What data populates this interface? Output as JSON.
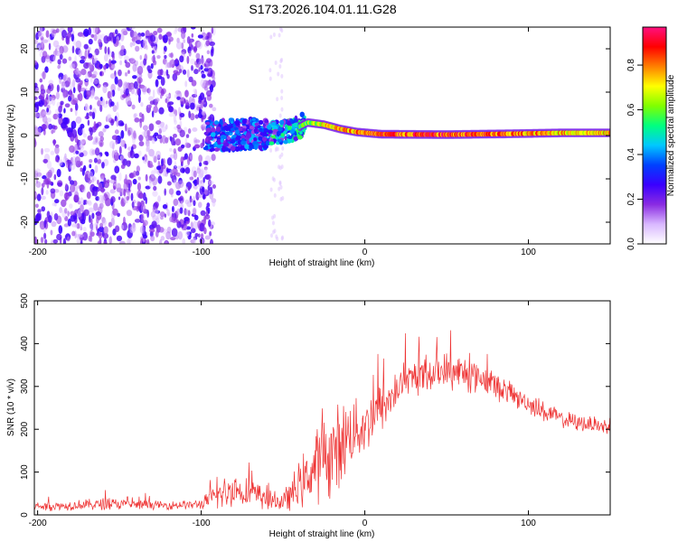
{
  "title": "S173.2026.104.01.11.G28",
  "chart_data": [
    {
      "type": "heatmap",
      "xlabel": "Height of straight line (km)",
      "ylabel": "Frequency (Hz)",
      "xlim": [
        -202,
        150
      ],
      "ylim": [
        -25,
        25
      ],
      "x_ticks": [
        -200,
        -100,
        0,
        100
      ],
      "y_ticks": [
        -20,
        -10,
        0,
        10,
        20
      ],
      "colorbar": {
        "label": "Normalized spectral amplitude",
        "range": [
          0,
          0.97
        ],
        "ticks": [
          "0.0",
          "0.2",
          "0.4",
          "0.6",
          "0.8"
        ],
        "tick_values": [
          0.0,
          0.2,
          0.4,
          0.6,
          0.8
        ]
      },
      "colormap": [
        "#ffffff",
        "#d9b8ff",
        "#8a2be2",
        "#3a00ff",
        "#0040ff",
        "#00c8ff",
        "#00ff80",
        "#80ff00",
        "#ffff00",
        "#ff8000",
        "#ff0000",
        "#ff1080"
      ],
      "ridge": [
        {
          "x": -95,
          "f": 0.0,
          "amp": 0.35
        },
        {
          "x": -80,
          "f": 0.2,
          "amp": 0.45
        },
        {
          "x": -60,
          "f": 0.5,
          "amp": 0.5
        },
        {
          "x": -45,
          "f": 1.0,
          "amp": 0.55
        },
        {
          "x": -35,
          "f": 3.0,
          "amp": 0.7
        },
        {
          "x": -25,
          "f": 2.5,
          "amp": 0.8
        },
        {
          "x": -15,
          "f": 1.5,
          "amp": 0.85
        },
        {
          "x": -5,
          "f": 0.8,
          "amp": 0.9
        },
        {
          "x": 10,
          "f": 0.3,
          "amp": 0.95
        },
        {
          "x": 50,
          "f": 0.2,
          "amp": 0.97
        },
        {
          "x": 90,
          "f": 0.4,
          "amp": 0.9
        },
        {
          "x": 120,
          "f": 0.6,
          "amp": 0.85
        },
        {
          "x": 150,
          "f": 0.6,
          "amp": 0.82
        }
      ]
    },
    {
      "type": "line",
      "xlabel": "Height of straight line (km)",
      "ylabel": "SNR (10 * v/v)",
      "xlim": [
        -202,
        150
      ],
      "ylim": [
        0,
        500
      ],
      "x_ticks": [
        -200,
        -100,
        0,
        100
      ],
      "y_ticks": [
        0,
        100,
        200,
        300,
        400,
        500
      ],
      "color": "#ee3333",
      "envelope": {
        "x": [
          -202,
          -180,
          -160,
          -140,
          -120,
          -100,
          -90,
          -80,
          -70,
          -60,
          -50,
          -40,
          -30,
          -20,
          -10,
          0,
          10,
          20,
          30,
          40,
          50,
          60,
          70,
          80,
          90,
          100,
          110,
          120,
          130,
          140,
          150
        ],
        "mean": [
          20,
          22,
          25,
          24,
          22,
          25,
          45,
          60,
          50,
          35,
          30,
          70,
          110,
          150,
          180,
          210,
          250,
          290,
          320,
          330,
          335,
          330,
          320,
          300,
          280,
          260,
          240,
          225,
          215,
          210,
          205
        ],
        "spread": [
          12,
          12,
          15,
          12,
          10,
          12,
          35,
          45,
          35,
          25,
          22,
          60,
          90,
          110,
          90,
          70,
          60,
          50,
          45,
          45,
          48,
          45,
          40,
          35,
          30,
          25,
          25,
          22,
          20,
          20,
          20
        ]
      }
    }
  ]
}
